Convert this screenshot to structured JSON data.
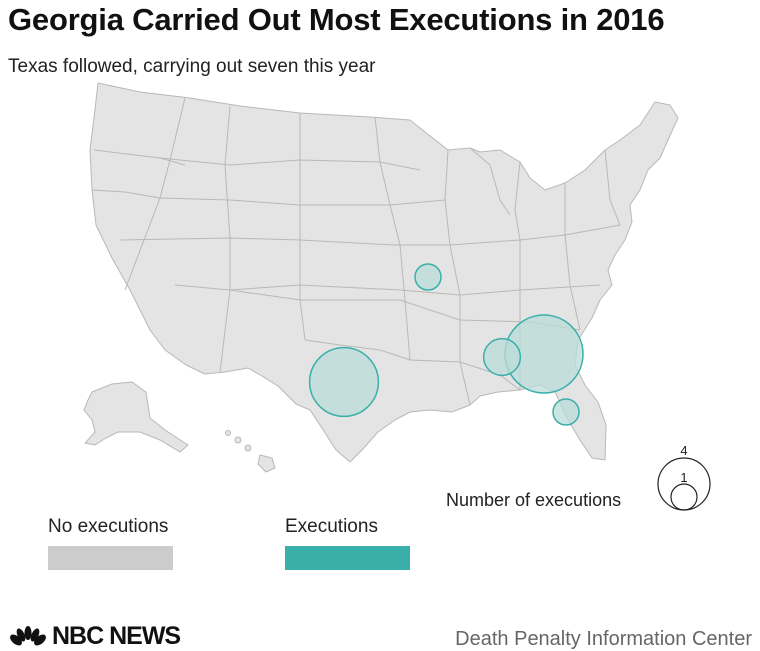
{
  "title": "Georgia Carried Out Most Executions in 2016",
  "subtitle": "Texas followed, carrying out seven this year",
  "colors": {
    "no_executions": "#cccccc",
    "executions": "#3aafa9",
    "state_fill": "#e4e4e4",
    "state_stroke": "#b8b8b8",
    "bubble_fill": "#b9dcd9",
    "bubble_stroke": "#3aafa9"
  },
  "legend": {
    "no_executions_label": "No executions",
    "executions_label": "Executions"
  },
  "size_legend": {
    "label": "Number of executions",
    "large_value": "4",
    "small_value": "1"
  },
  "executions_by_state": [
    {
      "state": "Georgia",
      "count": 9
    },
    {
      "state": "Texas",
      "count": 7
    },
    {
      "state": "Alabama",
      "count": 2
    },
    {
      "state": "Florida",
      "count": 1
    },
    {
      "state": "Missouri",
      "count": 1
    }
  ],
  "footer": {
    "logo": "NBC NEWS",
    "source": "Death Penalty Information Center"
  }
}
